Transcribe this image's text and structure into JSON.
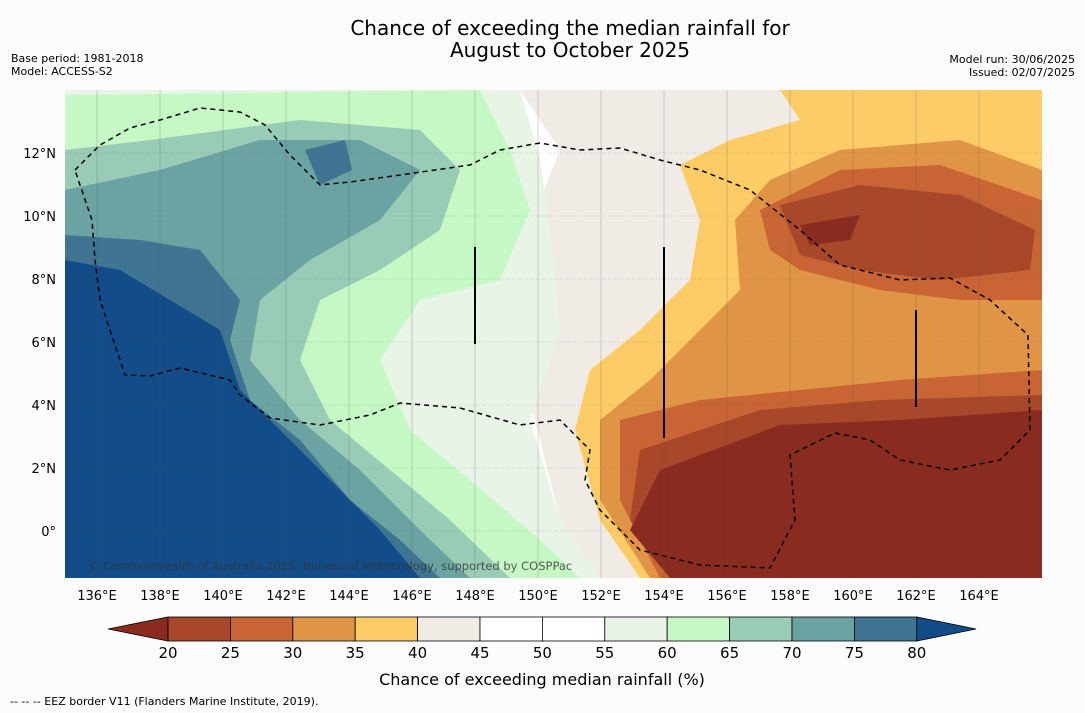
{
  "title_line1": "Chance of exceeding the median rainfall for",
  "title_line2": "August to October 2025",
  "base_period": "Base period: 1981-2018",
  "model": "Model: ACCESS-S2",
  "model_run": "Model run: 30/06/2025",
  "issued": "Issued: 02/07/2025",
  "copyright": "© Commonwealth of Australia 2025, Bureau of Meteorology, supported by COSPPac",
  "lat_labels": [
    "12°N",
    "10°N",
    "8°N",
    "6°N",
    "4°N",
    "2°N",
    "0°"
  ],
  "lon_labels": [
    "136°E",
    "138°E",
    "140°E",
    "142°E",
    "144°E",
    "146°E",
    "148°E",
    "150°E",
    "152°E",
    "154°E",
    "156°E",
    "158°E",
    "160°E",
    "162°E",
    "164°E"
  ],
  "colorbar": {
    "ticks": [
      "20",
      "25",
      "30",
      "35",
      "40",
      "45",
      "50",
      "55",
      "60",
      "65",
      "70",
      "75",
      "80"
    ],
    "colors": [
      "#8a2b1f",
      "#a9472a",
      "#c96534",
      "#e09445",
      "#fdcc67",
      "#f0ebe5",
      "#ffffff",
      "#ffffff",
      "#e8f4e6",
      "#c6f8c6",
      "#99ccb6",
      "#6ba2a2",
      "#3f7593",
      "#124d89"
    ],
    "title": "Chance of exceeding median rainfall (%)"
  },
  "footer": "--  --  -- EEZ border V11 (Flanders Marine Institute, 2019)."
}
